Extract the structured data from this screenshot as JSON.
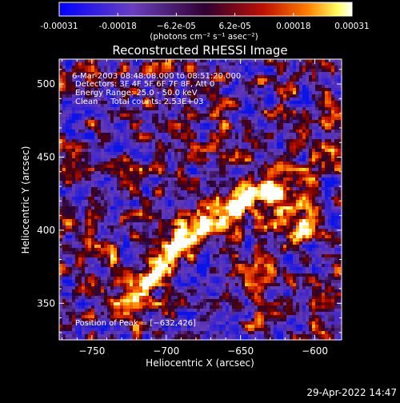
{
  "chart_data": {
    "type": "heatmap",
    "title": "Reconstructed RHESSI Image",
    "xlabel": "Heliocentric X (arcsec)",
    "ylabel": "Heliocentric Y (arcsec)",
    "xlim": [
      -772,
      -582
    ],
    "ylim": [
      325,
      517
    ],
    "x_ticks": [
      -750,
      -700,
      -650,
      -600
    ],
    "x_tick_labels": [
      "−750",
      "−700",
      "−650",
      "−600"
    ],
    "y_ticks": [
      350,
      400,
      450,
      500
    ],
    "y_tick_labels": [
      "350",
      "400",
      "450",
      "500"
    ],
    "colorbar": {
      "range": [
        -0.00031,
        0.00031
      ],
      "colormap": "blue-purple-red-yellow-white",
      "tick_labels": [
        "-0.00031",
        "-0.00018",
        "−6.2e-05",
        "6.2e-05",
        "0.00018",
        "0.00031"
      ],
      "units_label": "(photons cm⁻² s⁻¹ asec⁻²)"
    },
    "info_lines": [
      "6-Mar-2003 08:48:08.000 to 08:51:20.000",
      "Detectors: 3F 4F 5F 6F 7F 8F, Att 0",
      "Energy Range: 25.0 - 50.0 keV",
      "Clean     Total counts: 2.53E+03"
    ],
    "peak_label": "Position of Peak = [−632,426]",
    "peak": {
      "x": -632,
      "y": 426
    }
  },
  "footer": {
    "timestamp": "29-Apr-2022 14:47"
  }
}
